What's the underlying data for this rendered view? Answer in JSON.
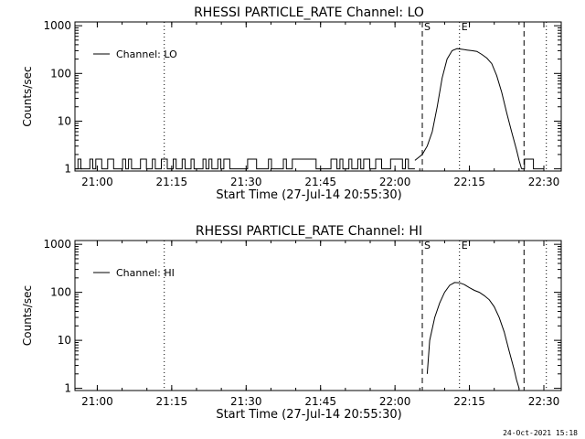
{
  "footer": {
    "timestamp": "24-Oct-2021 15:18"
  },
  "chart_data": [
    {
      "type": "line",
      "title": "RHESSI PARTICLE_RATE Channel: LO",
      "xlabel": "Start Time (27-Jul-14 20:55:30)",
      "ylabel": "Counts/sec",
      "y_scale": "log",
      "ylim": [
        0.9,
        1200
      ],
      "xlim": [
        "20:55:30",
        "22:33:30"
      ],
      "xticks": [
        "21:00",
        "21:15",
        "21:30",
        "21:45",
        "22:00",
        "22:15",
        "22:30"
      ],
      "yticks": [
        "1",
        "10",
        "100",
        "1000"
      ],
      "legend": {
        "position": "top-left",
        "entries": [
          "Channel: LO"
        ]
      },
      "markers": [
        {
          "label": "S",
          "time": "22:05:30",
          "style": "dashed"
        },
        {
          "label": "E",
          "time": "22:13:00",
          "style": "dotted"
        }
      ],
      "extra_lines": [
        {
          "time": "21:13:30",
          "style": "dotted"
        },
        {
          "time": "22:26:00",
          "style": "dashed"
        },
        {
          "time": "22:30:30",
          "style": "dotted"
        }
      ],
      "series": [
        {
          "name": "Channel: LO",
          "x": [
            "22:04:00",
            "22:05:30",
            "22:06:30",
            "22:07:30",
            "22:08:30",
            "22:09:30",
            "22:10:30",
            "22:11:30",
            "22:12:30",
            "22:13:30",
            "22:14:30",
            "22:15:30",
            "22:16:30",
            "22:17:30",
            "22:18:30",
            "22:19:30",
            "22:20:30",
            "22:21:30",
            "22:22:30",
            "22:23:30",
            "22:24:30",
            "22:25:00",
            "22:25:30"
          ],
          "values": [
            1.5,
            2.0,
            3,
            6,
            20,
            80,
            200,
            300,
            330,
            320,
            310,
            300,
            290,
            250,
            210,
            160,
            90,
            40,
            15,
            6,
            2.5,
            1.5,
            1.0
          ]
        }
      ],
      "noise": {
        "start": "20:55:30",
        "end": "22:04:00",
        "low": 1,
        "high": 1.6
      },
      "tail_noise": {
        "start": "22:25:30",
        "end": "22:30:00",
        "low": 1,
        "high": 1.6
      }
    },
    {
      "type": "line",
      "title": "RHESSI PARTICLE_RATE Channel: HI",
      "xlabel": "Start Time (27-Jul-14 20:55:30)",
      "ylabel": "Counts/sec",
      "y_scale": "log",
      "ylim": [
        0.9,
        1200
      ],
      "xlim": [
        "20:55:30",
        "22:33:30"
      ],
      "xticks": [
        "21:00",
        "21:15",
        "21:30",
        "21:45",
        "22:00",
        "22:15",
        "22:30"
      ],
      "yticks": [
        "1",
        "10",
        "100",
        "1000"
      ],
      "legend": {
        "position": "top-left",
        "entries": [
          "Channel: HI"
        ]
      },
      "markers": [
        {
          "label": "S",
          "time": "22:05:30",
          "style": "dashed"
        },
        {
          "label": "E",
          "time": "22:13:00",
          "style": "dotted"
        }
      ],
      "extra_lines": [
        {
          "time": "21:13:30",
          "style": "dotted"
        },
        {
          "time": "22:26:00",
          "style": "dashed"
        },
        {
          "time": "22:30:30",
          "style": "dotted"
        }
      ],
      "series": [
        {
          "name": "Channel: HI",
          "x": [
            "22:06:30",
            "22:07:00",
            "22:08:00",
            "22:09:00",
            "22:10:00",
            "22:11:00",
            "22:12:00",
            "22:13:00",
            "22:14:00",
            "22:15:00",
            "22:16:00",
            "22:17:00",
            "22:18:00",
            "22:19:00",
            "22:20:00",
            "22:21:00",
            "22:22:00",
            "22:23:00",
            "22:24:00",
            "22:24:30",
            "22:25:00"
          ],
          "values": [
            2,
            10,
            30,
            60,
            100,
            140,
            160,
            158,
            145,
            125,
            110,
            100,
            85,
            70,
            50,
            30,
            15,
            6,
            2.5,
            1.5,
            1.0
          ]
        }
      ]
    }
  ]
}
